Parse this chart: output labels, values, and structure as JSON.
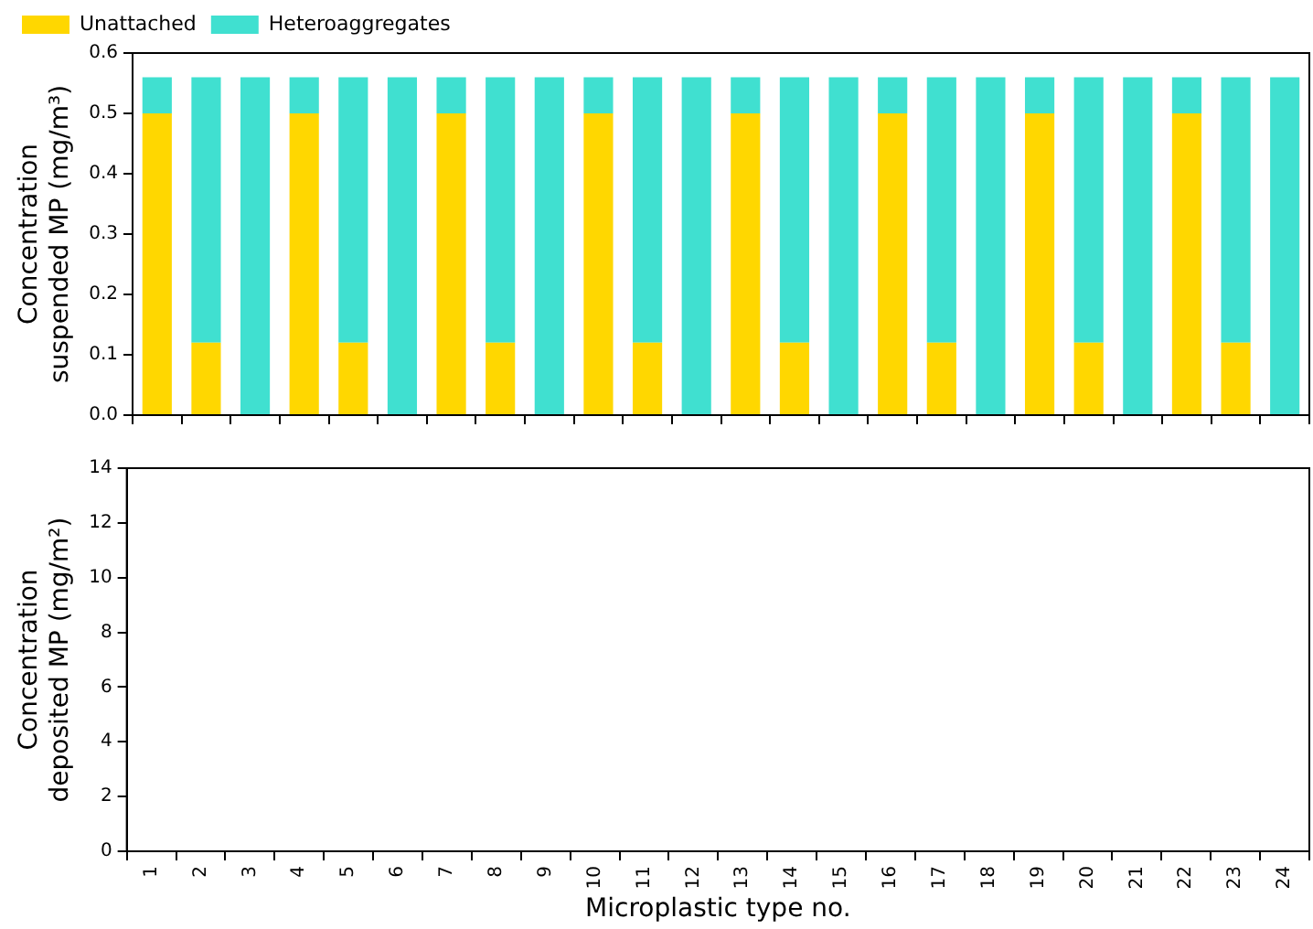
{
  "chart_data": [
    {
      "type": "bar",
      "stacked": true,
      "legend": "top left",
      "grid": false,
      "tick_labels": "y",
      "ylabel": "Concentration suspended MP (mg/m³)",
      "categories": [
        "1",
        "2",
        "3",
        "4",
        "5",
        "6",
        "7",
        "8",
        "9",
        "10",
        "11",
        "12",
        "13",
        "14",
        "15",
        "16",
        "17",
        "18",
        "19",
        "20",
        "21",
        "22",
        "23",
        "24"
      ],
      "ylim": [
        0,
        0.6
      ],
      "yticks": [
        {
          "value": 0,
          "label": "0.0"
        },
        0.1,
        0.2,
        0.3,
        0.4,
        0.5,
        0.6
      ],
      "series": [
        {
          "name": "Unattached",
          "color": "#ffd700",
          "values": [
            0.5,
            0.12,
            0,
            0.5,
            0.12,
            0,
            0.5,
            0.12,
            0,
            0.5,
            0.12,
            0,
            0.5,
            0.12,
            0,
            0.5,
            0.12,
            0,
            0.5,
            0.12,
            0,
            0.5,
            0.12,
            0
          ]
        },
        {
          "name": "Heteroaggregates",
          "color": "#40e0d0",
          "values": [
            0.06,
            0.44,
            0.56,
            0.06,
            0.44,
            0.56,
            0.06,
            0.44,
            0.56,
            0.06,
            0.44,
            0.56,
            0.06,
            0.44,
            0.56,
            0.06,
            0.44,
            0.56,
            0.06,
            0.44,
            0.56,
            0.06,
            0.44,
            0.56
          ]
        }
      ]
    },
    {
      "type": "bar",
      "stacked": true,
      "grid": false,
      "xlabel": "Microplastic type no.",
      "ylabel": "Concentration deposited MP (mg/m²)",
      "categories": [
        "1",
        "2",
        "3",
        "4",
        "5",
        "6",
        "7",
        "8",
        "9",
        "10",
        "11",
        "12",
        "13",
        "14",
        "15",
        "16",
        "17",
        "18",
        "19",
        "20",
        "21",
        "22",
        "23",
        "24"
      ],
      "ylim": [
        0,
        14
      ],
      "yticks": [
        0,
        2,
        4,
        6,
        8,
        10,
        12,
        14
      ],
      "series": [
        {
          "color": "#ffd700",
          "values": [
            0,
            0,
            0,
            0,
            0,
            0,
            0,
            0,
            0,
            0,
            0,
            0,
            0,
            0,
            0,
            0,
            0,
            0,
            0,
            0,
            0,
            0,
            0,
            0
          ]
        },
        {
          "color": "#40e0d0",
          "values": [
            0,
            0,
            0,
            0,
            0,
            0,
            0,
            0,
            0,
            0,
            0,
            0,
            0,
            0,
            0,
            0,
            0,
            0,
            0,
            0,
            0,
            0,
            0,
            0
          ]
        }
      ]
    }
  ]
}
